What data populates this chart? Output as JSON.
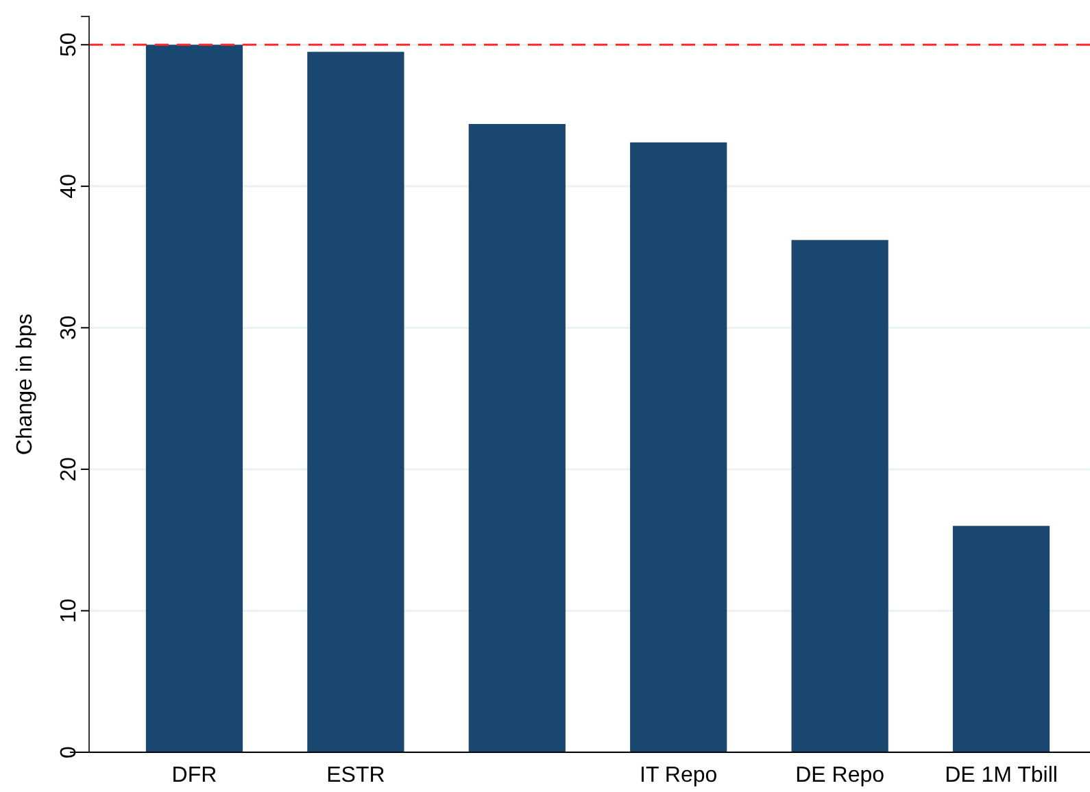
{
  "chart_data": {
    "type": "bar",
    "ylabel": "Change in bps",
    "categories": [
      "DFR",
      "ESTR",
      null,
      "IT Repo",
      "DE Repo",
      "DE 1M Tbill"
    ],
    "values": [
      50,
      49.5,
      44.4,
      43.1,
      36.2,
      16.0
    ],
    "color": "#1a476f",
    "ylim": [
      0,
      52
    ],
    "yticks": [
      0,
      10,
      20,
      30,
      40,
      50
    ],
    "grid": "y",
    "ref_lines": [
      {
        "axis": "y",
        "value": 50,
        "color": "#ff2a2a",
        "line_style": "dashed"
      }
    ]
  }
}
